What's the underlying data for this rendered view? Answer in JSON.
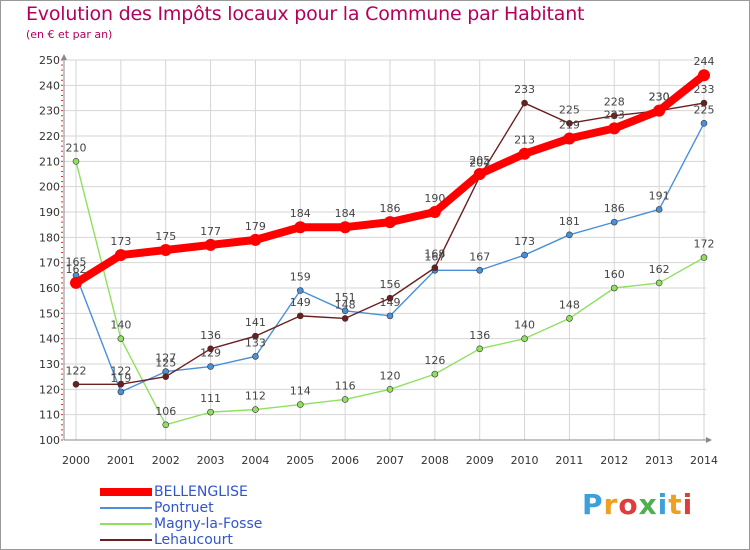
{
  "chart_data": {
    "type": "line",
    "title": "Evolution des Impôts locaux pour la Commune par Habitant",
    "subtitle": "(en € et par an)",
    "x": [
      "2000",
      "2001",
      "2002",
      "2003",
      "2004",
      "2005",
      "2006",
      "2007",
      "2008",
      "2009",
      "2010",
      "2011",
      "2012",
      "2013",
      "2014"
    ],
    "yticks": [
      100,
      110,
      120,
      130,
      140,
      150,
      160,
      170,
      180,
      190,
      200,
      210,
      220,
      230,
      240,
      250
    ],
    "ylim": [
      100,
      250
    ],
    "grid": true,
    "legend_position": "bottom-left",
    "series": [
      {
        "name": "BELLENGLISE",
        "color": "#ff0000",
        "values": [
          162,
          173,
          175,
          177,
          179,
          184,
          184,
          186,
          190,
          205,
          213,
          219,
          223,
          230,
          244
        ]
      },
      {
        "name": "Pontruet",
        "color": "#4a90d9",
        "values": [
          165,
          119,
          127,
          129,
          133,
          159,
          151,
          149,
          167,
          167,
          173,
          181,
          186,
          191,
          225
        ]
      },
      {
        "name": "Magny-la-Fosse",
        "color": "#90e060",
        "values": [
          210,
          140,
          106,
          111,
          112,
          114,
          116,
          120,
          126,
          136,
          140,
          148,
          160,
          162,
          172
        ]
      },
      {
        "name": "Lehaucourt",
        "color": "#6b1f1f",
        "values": [
          122,
          122,
          125,
          136,
          141,
          149,
          148,
          156,
          168,
          204,
          233,
          225,
          228,
          230,
          233
        ]
      }
    ]
  },
  "logo": {
    "letters": [
      "P",
      "r",
      "o",
      "x",
      "i",
      "t",
      "i"
    ],
    "colors": [
      "#3ca0dc",
      "#f0a020",
      "#e03c3c",
      "#50b050",
      "#3ca0dc",
      "#f0a020",
      "#e03c3c"
    ]
  }
}
